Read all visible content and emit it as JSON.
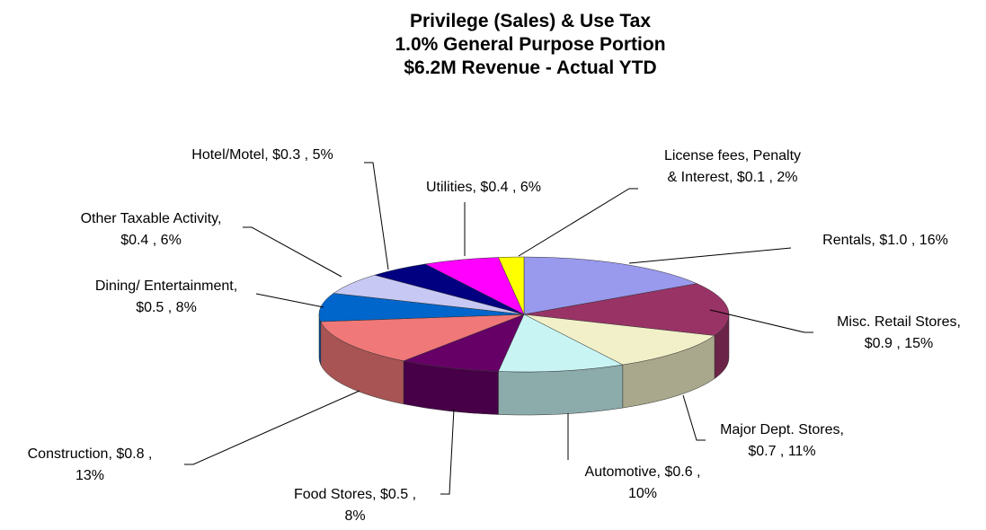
{
  "chart_data": {
    "type": "pie3d",
    "title": [
      "Privilege (Sales) & Use Tax",
      "1.0% General Purpose Portion",
      "$6.2M Revenue - Actual YTD"
    ],
    "labels": [
      [
        "Rentals, $1.0 , 16%"
      ],
      [
        "Misc. Retail Stores,",
        "$0.9 , 15%"
      ],
      [
        "Major Dept. Stores,",
        "$0.7 , 11%"
      ],
      [
        "Automotive, $0.6 ,",
        "10%"
      ],
      [
        "Food Stores, $0.5 ,",
        "8%"
      ],
      [
        "Construction, $0.8 ,",
        "13%"
      ],
      [
        "Dining/ Entertainment,",
        "$0.5 , 8%"
      ],
      [
        "Other Taxable Activity,",
        "$0.4 , 6%"
      ],
      [
        "Hotel/Motel, $0.3 , 5%"
      ],
      [
        "Utilities, $0.4 , 6%"
      ],
      [
        "License fees, Penalty",
        "& Interest, $0.1 , 2%"
      ]
    ],
    "values": [
      16,
      15,
      11,
      10,
      8,
      13,
      8,
      6,
      5,
      6,
      2
    ],
    "colors": [
      "#9999ee",
      "#993366",
      "#f2f0c8",
      "#c8f4f4",
      "#660066",
      "#f07878",
      "#0066cc",
      "#c8c8f4",
      "#000080",
      "#ff00ff",
      "#ffff00"
    ]
  }
}
